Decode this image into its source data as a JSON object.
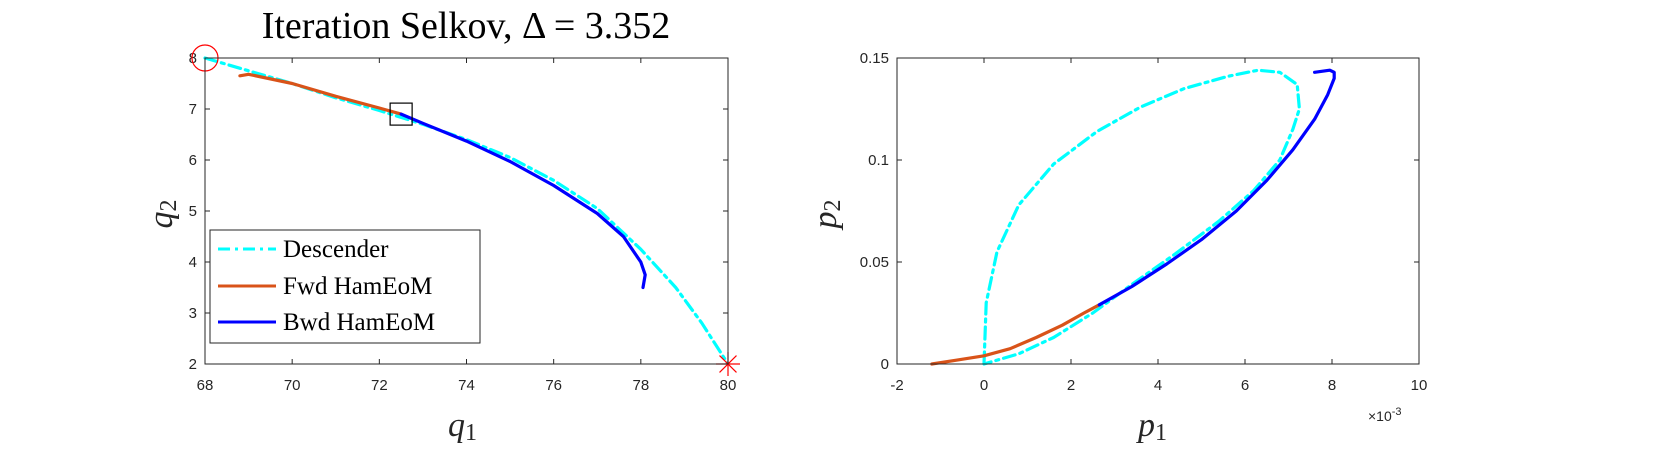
{
  "chart_data": [
    {
      "type": "line",
      "title": "Iteration Selkov, Δ = 3.352",
      "xlabel": "q",
      "xlabel_sub": "1",
      "ylabel": "q",
      "ylabel_sub": "2",
      "xlim": [
        68,
        80
      ],
      "ylim": [
        2,
        8
      ],
      "xticks": [
        68,
        70,
        72,
        74,
        76,
        78,
        80
      ],
      "yticks": [
        2,
        3,
        4,
        5,
        6,
        7,
        8
      ],
      "legend_position": "bottom-left",
      "legend": [
        "Descender",
        "Fwd HamEoM",
        "Bwd HamEoM"
      ],
      "series": [
        {
          "name": "Descender",
          "color": "#00ffff",
          "style": "dash-dot",
          "x": [
            68.0,
            69.0,
            70.0,
            71.0,
            72.0,
            73.0,
            74.0,
            75.0,
            76.0,
            77.0,
            78.0,
            78.8,
            79.4,
            80.0
          ],
          "y": [
            8.0,
            7.75,
            7.5,
            7.22,
            6.97,
            6.7,
            6.4,
            6.05,
            5.6,
            5.05,
            4.25,
            3.5,
            2.8,
            2.0
          ]
        },
        {
          "name": "Fwd HamEoM",
          "color": "#d95319",
          "style": "solid",
          "x": [
            68.8,
            69.0,
            70.0,
            71.0,
            72.0,
            72.5
          ],
          "y": [
            7.65,
            7.68,
            7.5,
            7.25,
            7.02,
            6.9
          ]
        },
        {
          "name": "Bwd HamEoM",
          "color": "#0000ff",
          "style": "solid",
          "x": [
            72.5,
            73.0,
            74.0,
            75.0,
            76.0,
            77.0,
            77.6,
            78.0,
            78.1,
            78.05
          ],
          "y": [
            6.9,
            6.72,
            6.37,
            5.97,
            5.5,
            4.95,
            4.5,
            4.0,
            3.75,
            3.5
          ]
        }
      ],
      "markers": [
        {
          "type": "circle",
          "x": 68,
          "y": 8,
          "color": "#ff0000"
        },
        {
          "type": "square",
          "x": 72.5,
          "y": 6.9,
          "color": "#000000"
        },
        {
          "type": "star",
          "x": 80,
          "y": 2,
          "color": "#ff0000"
        }
      ]
    },
    {
      "type": "line",
      "title": "",
      "xlabel": "p",
      "xlabel_sub": "1",
      "ylabel": "p",
      "ylabel_sub": "2",
      "x_exponent_label": "×10",
      "x_exponent": "-3",
      "xlim": [
        -2,
        10
      ],
      "ylim": [
        0,
        0.15
      ],
      "xticks": [
        -2,
        0,
        2,
        4,
        6,
        8,
        10
      ],
      "yticks": [
        0,
        0.05,
        0.1,
        0.15
      ],
      "series": [
        {
          "name": "Descender",
          "color": "#00ffff",
          "style": "dash-dot",
          "x": [
            0.0,
            0.05,
            0.3,
            0.8,
            1.6,
            2.6,
            3.6,
            4.6,
            5.6,
            6.3,
            6.8,
            7.2,
            7.25,
            7.1,
            6.8,
            6.2,
            5.4,
            4.4,
            3.4,
            2.5,
            1.6,
            0.8,
            0.0
          ],
          "y": [
            0.0,
            0.03,
            0.055,
            0.078,
            0.098,
            0.114,
            0.126,
            0.135,
            0.141,
            0.144,
            0.143,
            0.137,
            0.125,
            0.115,
            0.1,
            0.085,
            0.07,
            0.054,
            0.039,
            0.025,
            0.013,
            0.005,
            0.0
          ]
        },
        {
          "name": "Fwd HamEoM",
          "color": "#d95319",
          "style": "solid",
          "x": [
            -1.2,
            -0.6,
            0.0,
            0.6,
            1.2,
            1.8,
            2.3,
            2.65
          ],
          "y": [
            0.0,
            0.002,
            0.004,
            0.0075,
            0.013,
            0.019,
            0.025,
            0.029
          ]
        },
        {
          "name": "Bwd HamEoM",
          "color": "#0000ff",
          "style": "solid",
          "x": [
            2.65,
            3.4,
            4.2,
            5.0,
            5.8,
            6.5,
            7.1,
            7.6,
            7.9,
            8.05,
            8.05,
            7.95,
            7.6
          ],
          "y": [
            0.029,
            0.038,
            0.049,
            0.061,
            0.075,
            0.09,
            0.105,
            0.12,
            0.132,
            0.14,
            0.143,
            0.144,
            0.143
          ]
        }
      ]
    }
  ]
}
